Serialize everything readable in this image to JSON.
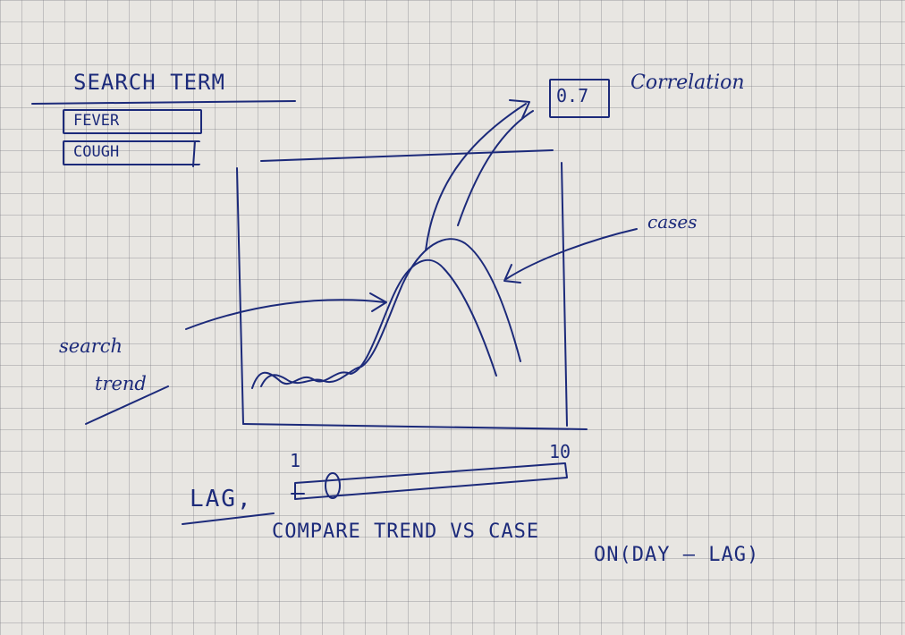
{
  "search_panel": {
    "title": "SEARCH TERM",
    "terms": [
      "FEVER",
      "COUGH"
    ]
  },
  "correlation": {
    "value": "0.7",
    "label": "Correlation"
  },
  "chart": {
    "series_labels": {
      "cases": "cases",
      "search_trend_line1": "search",
      "search_trend_line2": "trend"
    }
  },
  "lag_slider": {
    "label": "LAG,",
    "min_label": "1",
    "max_label": "10",
    "handle_value": 1
  },
  "notes": {
    "line1": "COMPARE TREND VS CASE",
    "line2": "ON(DAY – LAG)"
  },
  "colors": {
    "ink": "#1c2a7a",
    "paper": "#e8e6e2",
    "grid": "#78788a"
  }
}
